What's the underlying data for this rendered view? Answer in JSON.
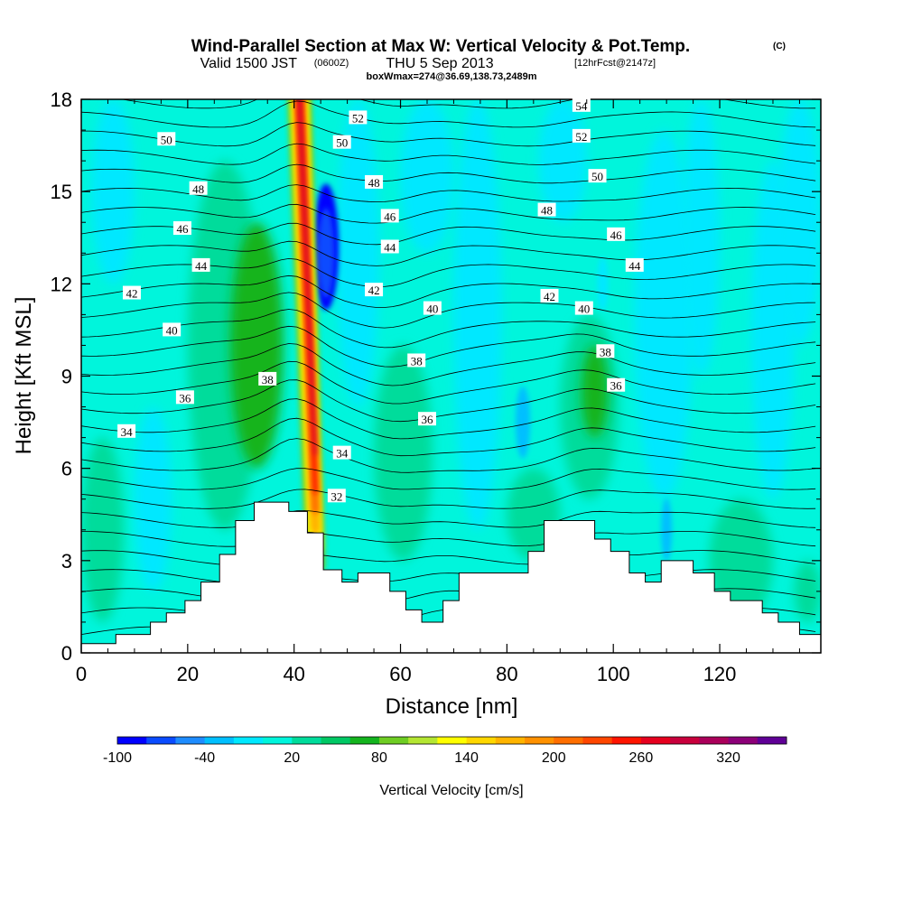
{
  "header": {
    "title": "Wind-Parallel Section at Max W: Vertical Velocity & Pot.Temp.",
    "copyright": "(C)",
    "valid_prefix": "Valid 1500 JST",
    "valid_utc": "(0600Z)",
    "valid_date": "THU 5 Sep 2013",
    "forecast": "[12hrFcst@2147z]",
    "box_info": "boxWmax=274@36.69,138.73,2489m"
  },
  "chart_data": {
    "type": "heatmap",
    "title": "Wind-Parallel Section at Max W: Vertical Velocity & Pot.Temp.",
    "xlabel": "Distance [nm]",
    "ylabel": "Height [Kft MSL]",
    "xlim": [
      0,
      139
    ],
    "ylim": [
      0,
      18
    ],
    "x_ticks": [
      "0",
      "20",
      "40",
      "60",
      "80",
      "100",
      "120"
    ],
    "y_ticks": [
      "0",
      "3",
      "6",
      "9",
      "12",
      "15",
      "18"
    ],
    "colorbar": {
      "title": "Vertical Velocity [cm/s]",
      "tick_labels": [
        "-100",
        "-40",
        "20",
        "80",
        "140",
        "200",
        "260",
        "320"
      ],
      "levels": [
        -100,
        -80,
        -60,
        -40,
        -20,
        0,
        20,
        40,
        60,
        80,
        100,
        120,
        140,
        160,
        180,
        200,
        220,
        240,
        260,
        280,
        300,
        320,
        340,
        360
      ],
      "colors": [
        "#0000ff",
        "#0a4bff",
        "#1e8cff",
        "#00bfff",
        "#00e8ff",
        "#00f5dc",
        "#00dc9b",
        "#00c864",
        "#14b41e",
        "#6ecd23",
        "#b4e632",
        "#ffff00",
        "#ffd700",
        "#ffb400",
        "#ff9100",
        "#ff6e00",
        "#ff4600",
        "#ff1400",
        "#e6001e",
        "#c8003c",
        "#aa005a",
        "#8c0078",
        "#5f0096"
      ]
    },
    "terrain": [
      {
        "x": 0,
        "h": 0.3
      },
      {
        "x": 6.5,
        "h": 0.6
      },
      {
        "x": 13,
        "h": 1.0
      },
      {
        "x": 16,
        "h": 1.3
      },
      {
        "x": 19.5,
        "h": 1.7
      },
      {
        "x": 22.5,
        "h": 2.3
      },
      {
        "x": 26,
        "h": 3.2
      },
      {
        "x": 29,
        "h": 4.3
      },
      {
        "x": 32.5,
        "h": 4.9
      },
      {
        "x": 39,
        "h": 4.6
      },
      {
        "x": 42.5,
        "h": 3.9
      },
      {
        "x": 45.5,
        "h": 2.7
      },
      {
        "x": 49,
        "h": 2.3
      },
      {
        "x": 52,
        "h": 2.6
      },
      {
        "x": 58,
        "h": 2.0
      },
      {
        "x": 61,
        "h": 1.4
      },
      {
        "x": 64,
        "h": 1.0
      },
      {
        "x": 68,
        "h": 1.7
      },
      {
        "x": 71,
        "h": 2.6
      },
      {
        "x": 80.5,
        "h": 2.6
      },
      {
        "x": 84,
        "h": 3.3
      },
      {
        "x": 87,
        "h": 4.3
      },
      {
        "x": 96.5,
        "h": 3.7
      },
      {
        "x": 99.5,
        "h": 3.3
      },
      {
        "x": 103,
        "h": 2.6
      },
      {
        "x": 106,
        "h": 2.3
      },
      {
        "x": 109,
        "h": 3.0
      },
      {
        "x": 115,
        "h": 2.6
      },
      {
        "x": 119,
        "h": 2.0
      },
      {
        "x": 122,
        "h": 1.7
      },
      {
        "x": 128,
        "h": 1.3
      },
      {
        "x": 131,
        "h": 1.0
      },
      {
        "x": 135,
        "h": 0.6
      },
      {
        "x": 139,
        "h": 0.6
      }
    ],
    "w_features": [
      {
        "kind": "updraft-core",
        "x_top": 41,
        "x_bottom": 43,
        "y_peak": 9.5,
        "peak_w": 274
      },
      {
        "kind": "downdraft",
        "x": 46,
        "y": 13.2,
        "w": -100
      },
      {
        "kind": "downdraft",
        "x": 83,
        "y": 7.5,
        "w": -40
      },
      {
        "kind": "downdraft",
        "x": 110,
        "y": 4.0,
        "w": -40
      },
      {
        "kind": "weak-updraft",
        "x": 28,
        "y": 10,
        "w": 80
      },
      {
        "kind": "weak-updraft",
        "x": 97,
        "y": 8,
        "w": 40
      }
    ],
    "theta_contour_labels": [
      {
        "text": "52",
        "x": 52,
        "y": 17.4
      },
      {
        "text": "50",
        "x": 16,
        "y": 16.7
      },
      {
        "text": "50",
        "x": 49,
        "y": 16.6
      },
      {
        "text": "48",
        "x": 22,
        "y": 15.1
      },
      {
        "text": "48",
        "x": 55,
        "y": 15.3
      },
      {
        "text": "46",
        "x": 19,
        "y": 13.8
      },
      {
        "text": "46",
        "x": 58,
        "y": 14.2
      },
      {
        "text": "44",
        "x": 22.5,
        "y": 12.6
      },
      {
        "text": "44",
        "x": 58,
        "y": 13.2
      },
      {
        "text": "42",
        "x": 9.5,
        "y": 11.7
      },
      {
        "text": "42",
        "x": 55,
        "y": 11.8
      },
      {
        "text": "40",
        "x": 17,
        "y": 10.5
      },
      {
        "text": "40",
        "x": 66,
        "y": 11.2
      },
      {
        "text": "38",
        "x": 35,
        "y": 8.9
      },
      {
        "text": "38",
        "x": 63,
        "y": 9.5
      },
      {
        "text": "36",
        "x": 19.5,
        "y": 8.3
      },
      {
        "text": "36",
        "x": 65,
        "y": 7.6
      },
      {
        "text": "34",
        "x": 8.5,
        "y": 7.2
      },
      {
        "text": "34",
        "x": 49,
        "y": 6.5
      },
      {
        "text": "32",
        "x": 48,
        "y": 5.1
      },
      {
        "text": "54",
        "x": 94,
        "y": 17.8
      },
      {
        "text": "52",
        "x": 94,
        "y": 16.8
      },
      {
        "text": "50",
        "x": 97,
        "y": 15.5
      },
      {
        "text": "48",
        "x": 87.5,
        "y": 14.4
      },
      {
        "text": "46",
        "x": 100.5,
        "y": 13.6
      },
      {
        "text": "44",
        "x": 104,
        "y": 12.6
      },
      {
        "text": "42",
        "x": 88,
        "y": 11.6
      },
      {
        "text": "40",
        "x": 94.5,
        "y": 11.2
      },
      {
        "text": "38",
        "x": 98.5,
        "y": 9.8
      },
      {
        "text": "36",
        "x": 100.5,
        "y": 8.7
      }
    ]
  }
}
